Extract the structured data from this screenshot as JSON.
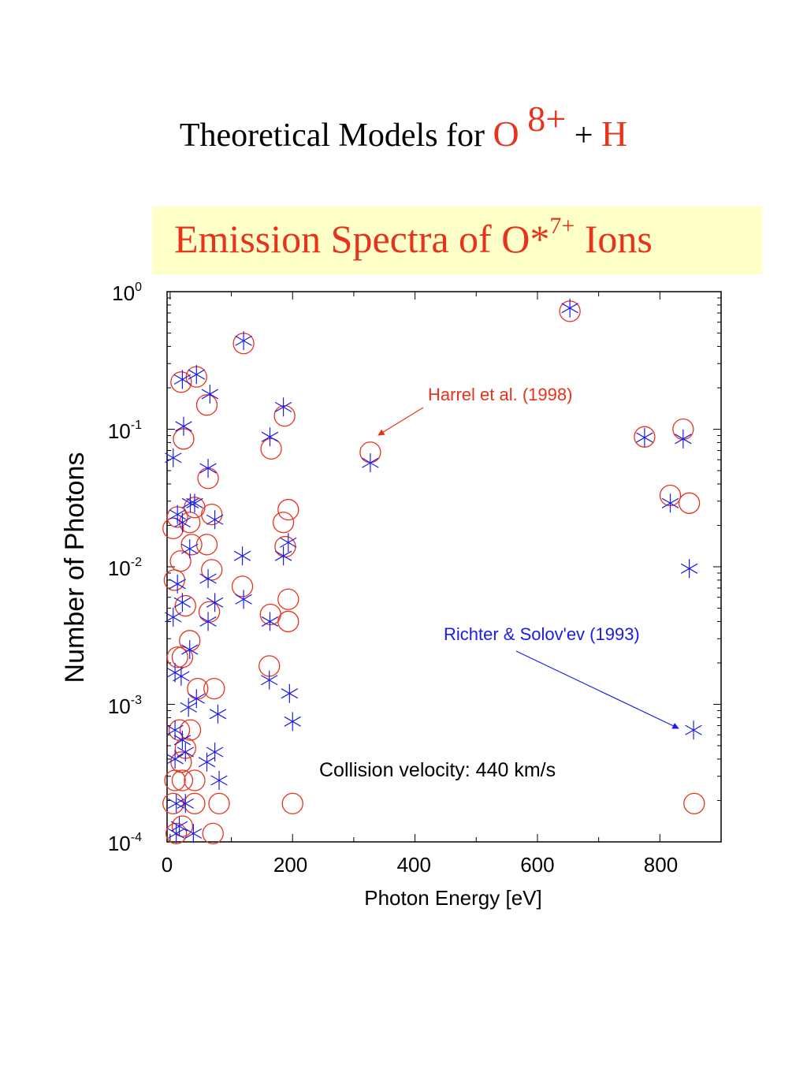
{
  "slide": {
    "title_prefix": "Theoretical Models for",
    "title_o": "O",
    "title_charge": "8+",
    "title_plus": "+",
    "title_h": "H",
    "banner_prefix": "Emission Spectra of  O*",
    "banner_charge": "7+",
    "banner_suffix": "Ions"
  },
  "colors": {
    "red_series": "#e8321c",
    "blue_series": "#1c1ce8",
    "banner_bg": "#ffffc8"
  },
  "chart_data": {
    "type": "scatter",
    "title": "",
    "xlabel": "Photon Energy [eV]",
    "ylabel": "Number of  Photons",
    "xlim": [
      -5,
      900
    ],
    "ylim": [
      0.0001,
      1
    ],
    "yscale": "log",
    "xticks": [
      "0",
      "200",
      "400",
      "600",
      "800"
    ],
    "yticks": [
      {
        "base": "10",
        "exp": "0"
      },
      {
        "base": "10",
        "exp": "-1"
      },
      {
        "base": "10",
        "exp": "-2"
      },
      {
        "base": "10",
        "exp": "-3"
      },
      {
        "base": "10",
        "exp": "-4"
      }
    ],
    "annotations": {
      "harrel": "Harrel et al. (1998)",
      "richter": "Richter & Solov'ev  (1993)",
      "velocity": "Collision velocity: 440 km/s"
    },
    "series": [
      {
        "name": "Harrel et al. (1998)",
        "marker": "circle",
        "color": "#e8321c",
        "points": [
          [
            120,
            0.42
          ],
          [
            43,
            0.24
          ],
          [
            18,
            0.22
          ],
          [
            60,
            0.15
          ],
          [
            22,
            0.085
          ],
          [
            187,
            0.125
          ],
          [
            165,
            0.072
          ],
          [
            327,
            0.068
          ],
          [
            653,
            0.72
          ],
          [
            775,
            0.088
          ],
          [
            838,
            0.1
          ],
          [
            817,
            0.033
          ],
          [
            848,
            0.029
          ],
          [
            62,
            0.044
          ],
          [
            40,
            0.027
          ],
          [
            12,
            0.023
          ],
          [
            5,
            0.019
          ],
          [
            32,
            0.021
          ],
          [
            68,
            0.024
          ],
          [
            193,
            0.026
          ],
          [
            185,
            0.021
          ],
          [
            188,
            0.014
          ],
          [
            17,
            0.011
          ],
          [
            60,
            0.0145
          ],
          [
            35,
            0.0145
          ],
          [
            68,
            0.0095
          ],
          [
            118,
            0.0072
          ],
          [
            7,
            0.008
          ],
          [
            25,
            0.0052
          ],
          [
            64,
            0.0047
          ],
          [
            164,
            0.0045
          ],
          [
            193,
            0.0058
          ],
          [
            193,
            0.004
          ],
          [
            32,
            0.0029
          ],
          [
            12,
            0.0022
          ],
          [
            20,
            0.0022
          ],
          [
            162,
            0.0019
          ],
          [
            45,
            0.0013
          ],
          [
            72,
            0.0013
          ],
          [
            15,
            0.00065
          ],
          [
            33,
            0.00065
          ],
          [
            25,
            0.00048
          ],
          [
            18,
            0.00038
          ],
          [
            8,
            0.00028
          ],
          [
            20,
            0.00028
          ],
          [
            40,
            0.00028
          ],
          [
            5,
            0.00019
          ],
          [
            40,
            0.00019
          ],
          [
            80,
            0.00019
          ],
          [
            200,
            0.00019
          ],
          [
            856,
            0.00019
          ],
          [
            10,
            0.000115
          ],
          [
            70,
            0.000115
          ],
          [
            20,
            0.00013
          ]
        ]
      },
      {
        "name": "Richter & Solov'ev  (1993)",
        "marker": "asterisk",
        "color": "#1c1ce8",
        "points": [
          [
            120,
            0.44
          ],
          [
            43,
            0.25
          ],
          [
            20,
            0.23
          ],
          [
            65,
            0.18
          ],
          [
            22,
            0.105
          ],
          [
            185,
            0.145
          ],
          [
            163,
            0.088
          ],
          [
            5,
            0.062
          ],
          [
            327,
            0.057
          ],
          [
            653,
            0.76
          ],
          [
            775,
            0.087
          ],
          [
            838,
            0.085
          ],
          [
            817,
            0.029
          ],
          [
            62,
            0.052
          ],
          [
            40,
            0.029
          ],
          [
            33,
            0.029
          ],
          [
            12,
            0.024
          ],
          [
            20,
            0.021
          ],
          [
            73,
            0.022
          ],
          [
            193,
            0.015
          ],
          [
            185,
            0.012
          ],
          [
            118,
            0.012
          ],
          [
            32,
            0.0135
          ],
          [
            848,
            0.0097
          ],
          [
            62,
            0.0082
          ],
          [
            12,
            0.0075
          ],
          [
            20,
            0.0055
          ],
          [
            73,
            0.0055
          ],
          [
            5,
            0.0043
          ],
          [
            62,
            0.004
          ],
          [
            163,
            0.004
          ],
          [
            120,
            0.0058
          ],
          [
            32,
            0.0025
          ],
          [
            8,
            0.0017
          ],
          [
            18,
            0.0016
          ],
          [
            162,
            0.0015
          ],
          [
            195,
            0.0012
          ],
          [
            43,
            0.0011
          ],
          [
            30,
            0.00095
          ],
          [
            78,
            0.00085
          ],
          [
            200,
            0.00075
          ],
          [
            855,
            0.00065
          ],
          [
            8,
            0.00065
          ],
          [
            20,
            0.00055
          ],
          [
            25,
            0.00045
          ],
          [
            73,
            0.00045
          ],
          [
            8,
            0.0004
          ],
          [
            60,
            0.00038
          ],
          [
            80,
            0.00028
          ],
          [
            10,
            0.00019
          ],
          [
            25,
            0.00019
          ],
          [
            10,
            0.000115
          ],
          [
            38,
            0.000115
          ],
          [
            15,
            0.00013
          ]
        ]
      }
    ]
  }
}
